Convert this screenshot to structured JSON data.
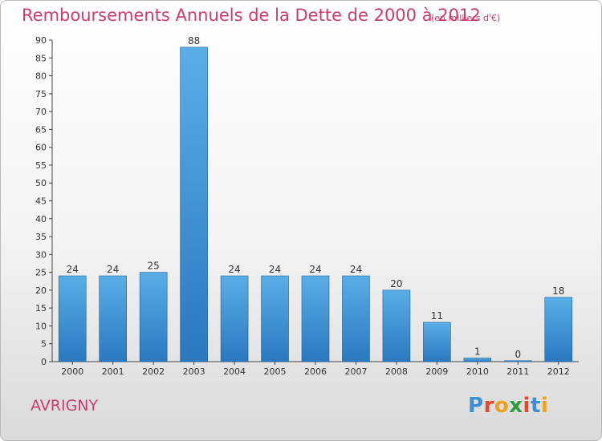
{
  "header": {
    "title": "Remboursements Annuels de la Dette de 2000 à 2012",
    "unit": "(en milliers d'€)"
  },
  "footer": {
    "city": "AVRIGNY",
    "logo_text": "Proxiti"
  },
  "colors": {
    "title": "#cc3d6e",
    "bar_top": "#5aaee6",
    "bar_bottom": "#2a78c0"
  },
  "chart_data": {
    "type": "bar",
    "title": "Remboursements Annuels de la Dette de 2000 à 2012",
    "categories": [
      "2000",
      "2001",
      "2002",
      "2003",
      "2004",
      "2005",
      "2006",
      "2007",
      "2008",
      "2009",
      "2010",
      "2011",
      "2012"
    ],
    "values": [
      24,
      24,
      25,
      88,
      24,
      24,
      24,
      24,
      20,
      11,
      1,
      0,
      18
    ],
    "ylim": [
      0,
      90
    ],
    "yticks": [
      0,
      5,
      10,
      15,
      20,
      25,
      30,
      35,
      40,
      45,
      50,
      55,
      60,
      65,
      70,
      75,
      80,
      85,
      90
    ],
    "grid": false,
    "legend": "none"
  }
}
